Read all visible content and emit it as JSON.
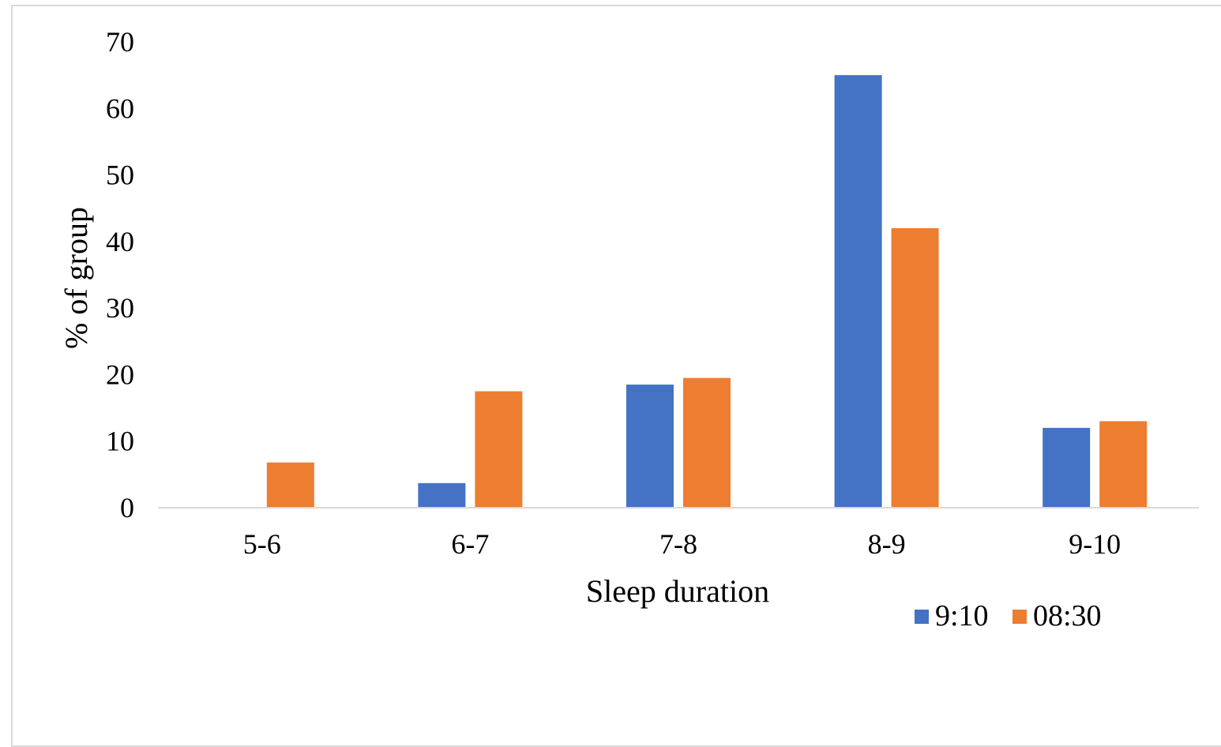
{
  "chart_data": {
    "type": "bar",
    "categories": [
      "5-6",
      "6-7",
      "7-8",
      "8-9",
      "9-10"
    ],
    "series": [
      {
        "name": "9:10",
        "color": "#4472C4",
        "values": [
          0,
          3.7,
          18.5,
          65,
          12
        ]
      },
      {
        "name": "08:30",
        "color": "#ED7D31",
        "values": [
          6.8,
          17.5,
          19.5,
          42,
          13
        ]
      }
    ],
    "title": "",
    "xlabel": "Sleep duration",
    "ylabel": "% of group",
    "ylim": [
      0,
      70
    ],
    "yticks": [
      0,
      10,
      20,
      30,
      40,
      50,
      60,
      70
    ],
    "grid": false,
    "legend_position": "bottom-right"
  }
}
